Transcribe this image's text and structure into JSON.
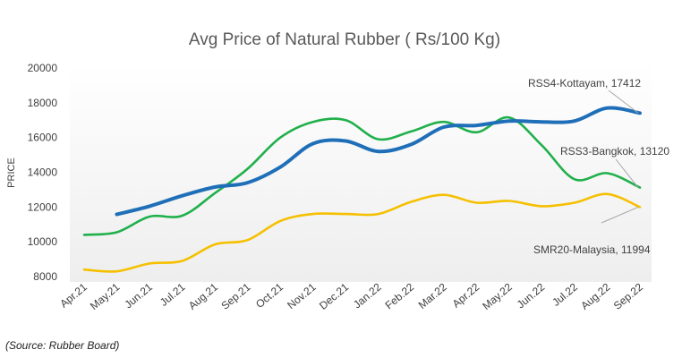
{
  "chart_data": {
    "type": "line",
    "title": "Avg Price of Natural Rubber ( Rs/100 Kg)",
    "xlabel": "",
    "ylabel": "PRICE",
    "ylim": [
      8000,
      20000
    ],
    "yticks": [
      8000,
      10000,
      12000,
      14000,
      16000,
      18000,
      20000
    ],
    "categories": [
      "Apr.21",
      "May.21",
      "Jun.21",
      "Jul.21",
      "Aug.21",
      "Sep.21",
      "Oct.21",
      "Nov.21",
      "Dec.21",
      "Jan.22",
      "Feb.22",
      "Mar.22",
      "Apr.22",
      "May.22",
      "Jun.22",
      "Jul.22",
      "Aug.22",
      "Sep.22"
    ],
    "grid": false,
    "legend": "none",
    "series": [
      {
        "name": "RSS4-Kottayam",
        "color": "#1f6fb8",
        "values": [
          null,
          11580,
          12050,
          12650,
          13150,
          13400,
          14300,
          15650,
          15800,
          15200,
          15600,
          16600,
          16700,
          16950,
          16900,
          16950,
          17700,
          17412
        ]
      },
      {
        "name": "RSS3-Bangkok",
        "color": "#20b04b",
        "values": [
          10400,
          10550,
          11450,
          11500,
          12800,
          14200,
          16000,
          16900,
          17000,
          15900,
          16350,
          16900,
          16300,
          17150,
          15550,
          13600,
          13950,
          13120
        ]
      },
      {
        "name": "SMR20-Malaysia",
        "color": "#f5c000",
        "values": [
          8400,
          8300,
          8750,
          8900,
          9850,
          10100,
          11200,
          11600,
          11600,
          11600,
          12300,
          12700,
          12250,
          12350,
          12050,
          12250,
          12750,
          11994
        ]
      }
    ],
    "annotations": [
      {
        "series": "RSS4-Kottayam",
        "text": "RSS4-Kottayam, 17412"
      },
      {
        "series": "RSS3-Bangkok",
        "text": "RSS3-Bangkok, 13120"
      },
      {
        "series": "SMR20-Malaysia",
        "text": "SMR20-Malaysia, 11994"
      }
    ]
  },
  "source_note": "(Source: Rubber Board)"
}
